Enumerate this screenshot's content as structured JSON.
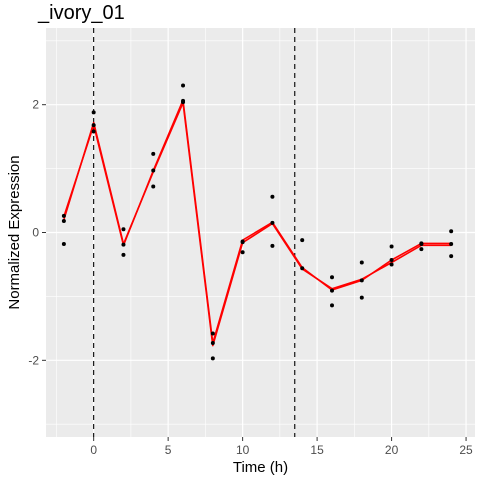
{
  "chart_data": {
    "type": "line",
    "title": "_ivory_01",
    "xlabel": "Time (h)",
    "ylabel": "Normalized Expression",
    "xlim": [
      -3.2,
      25.6
    ],
    "ylim": [
      -3.2,
      3.2
    ],
    "x_ticks": [
      0,
      5,
      10,
      15,
      20,
      25
    ],
    "y_ticks": [
      -2,
      0,
      2
    ],
    "grid": true,
    "panel_background": "#ebebeb",
    "grid_color": "#ffffff",
    "line_color": "#ff0000",
    "point_color": "#000000",
    "vlines": [
      0,
      13.5
    ],
    "series": [
      {
        "type": "line",
        "x": [
          -2,
          0,
          2,
          4,
          6,
          8,
          10,
          12,
          14,
          16,
          18,
          20,
          22,
          24
        ],
        "values": [
          0.25,
          1.68,
          -0.2,
          0.97,
          2.07,
          -1.73,
          -0.12,
          0.16,
          -0.55,
          -0.9,
          -0.75,
          -0.43,
          -0.17,
          -0.17
        ]
      },
      {
        "type": "line",
        "x": [
          -2,
          0,
          2,
          4,
          6,
          8,
          10,
          12,
          14,
          16,
          18,
          20,
          22,
          24
        ],
        "values": [
          0.2,
          1.72,
          -0.18,
          0.95,
          2.03,
          -1.77,
          -0.16,
          0.14,
          -0.57,
          -0.88,
          -0.73,
          -0.47,
          -0.2,
          -0.2
        ]
      },
      {
        "type": "scatter",
        "x": [
          -2,
          -2,
          -2,
          0,
          0,
          0,
          2,
          2,
          2,
          4,
          4,
          4,
          6,
          6,
          6,
          8,
          8,
          8,
          10,
          10,
          10,
          12,
          12,
          12,
          14,
          14,
          16,
          16,
          16,
          18,
          18,
          18,
          20,
          20,
          20,
          22,
          22,
          22,
          24,
          24,
          24
        ],
        "values": [
          0.26,
          0.18,
          -0.18,
          1.88,
          1.68,
          1.58,
          0.05,
          -0.19,
          -0.35,
          1.23,
          0.97,
          0.72,
          2.3,
          2.06,
          2.04,
          -1.58,
          -1.73,
          -1.97,
          -0.14,
          -0.15,
          -0.31,
          0.56,
          0.15,
          -0.21,
          -0.12,
          -0.56,
          -0.7,
          -0.91,
          -1.14,
          -0.47,
          -0.75,
          -1.02,
          -0.22,
          -0.43,
          -0.5,
          -0.17,
          -0.18,
          -0.26,
          0.02,
          -0.18,
          -0.37
        ]
      }
    ]
  }
}
